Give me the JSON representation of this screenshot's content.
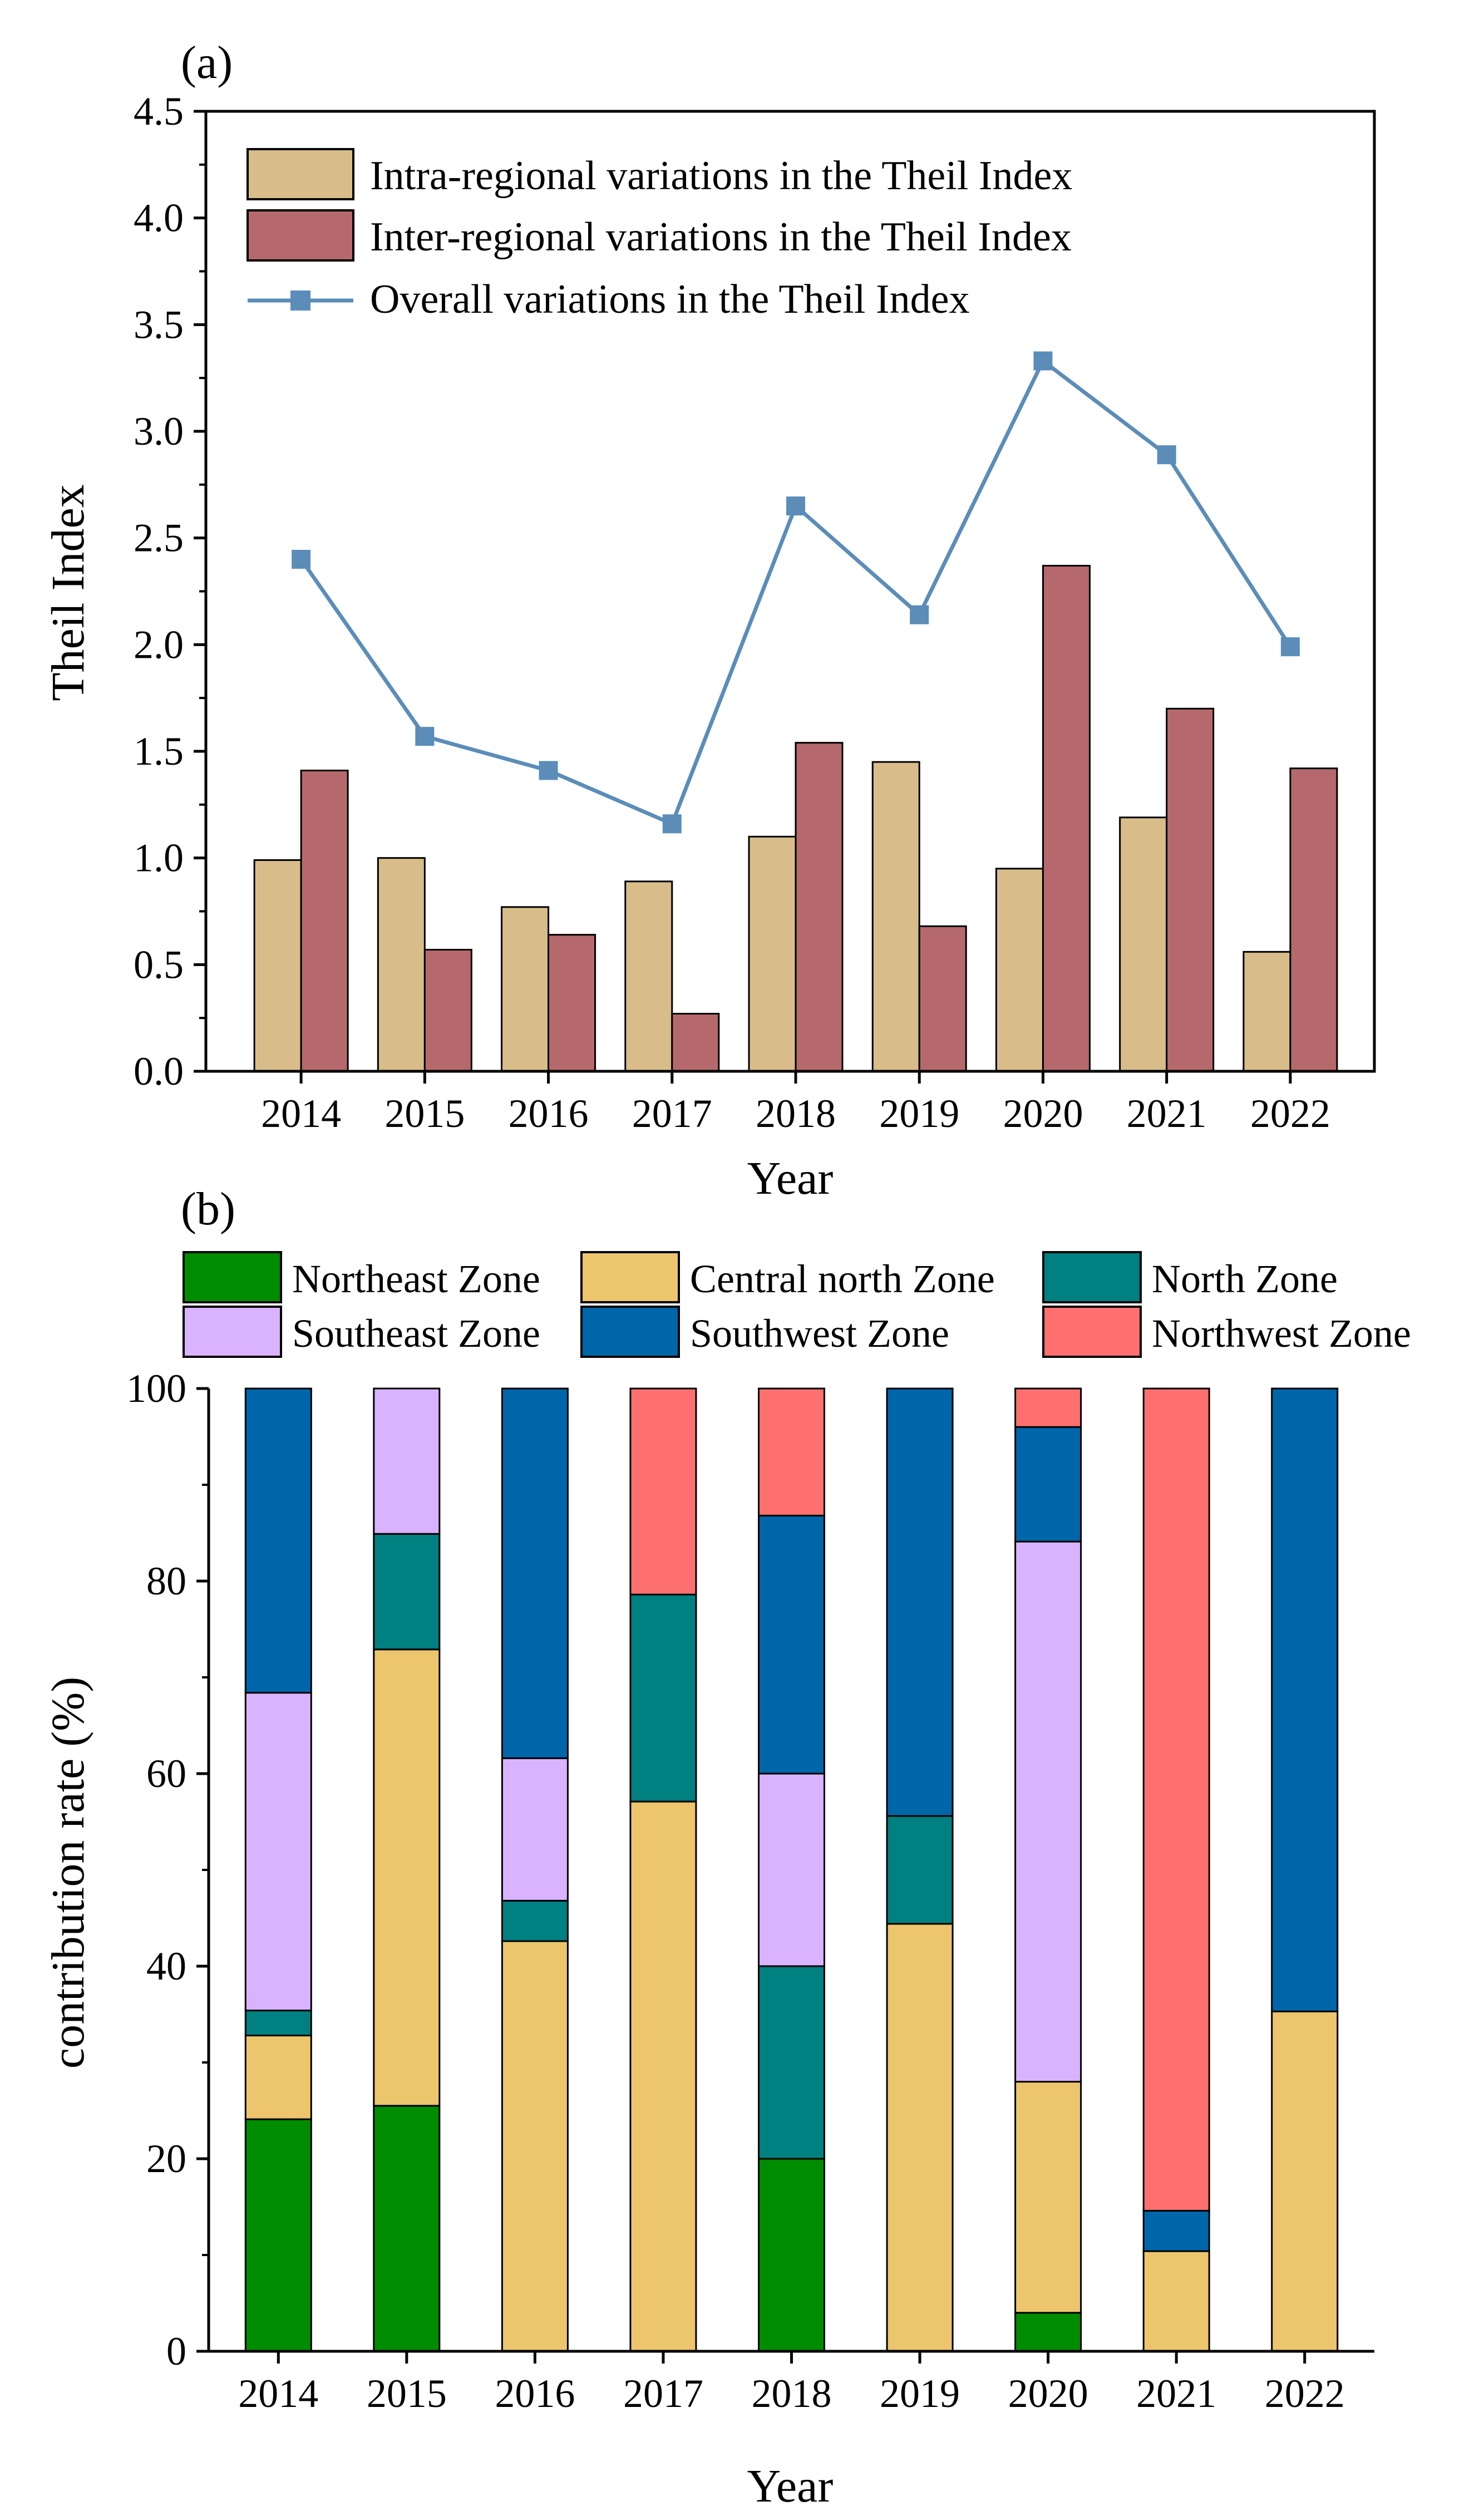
{
  "chart_data": [
    {
      "panel_label": "(a)",
      "type": "bar",
      "title": "",
      "xlabel": "Year",
      "ylabel": "Theil Index",
      "categories": [
        "2014",
        "2015",
        "2016",
        "2017",
        "2018",
        "2019",
        "2020",
        "2021",
        "2022"
      ],
      "ylim": [
        0,
        4.5
      ],
      "yticks": [
        "0.0",
        "0.5",
        "1.0",
        "1.5",
        "2.0",
        "2.5",
        "3.0",
        "3.5",
        "4.0",
        "4.5"
      ],
      "legend_position": "top-left",
      "series": [
        {
          "name": "Intra-regional variations in the Theil Index",
          "kind": "bar",
          "color": "#d8bd8a",
          "values": [
            0.99,
            1.0,
            0.77,
            0.89,
            1.1,
            1.45,
            0.95,
            1.19,
            0.56
          ]
        },
        {
          "name": "Inter-regional variations in the Theil Index",
          "kind": "bar",
          "color": "#b5696c",
          "values": [
            1.41,
            0.57,
            0.64,
            0.27,
            1.54,
            0.68,
            2.37,
            1.7,
            1.42
          ]
        },
        {
          "name": "Overall variations in the Theil Index",
          "kind": "line",
          "color": "#5b8db8",
          "values": [
            2.4,
            1.57,
            1.41,
            1.16,
            2.65,
            2.14,
            3.33,
            2.89,
            1.99
          ]
        }
      ]
    },
    {
      "panel_label": "(b)",
      "type": "bar",
      "stacked": true,
      "title": "",
      "xlabel": "Year",
      "ylabel": "contribution rate (%)",
      "categories": [
        "2014",
        "2015",
        "2016",
        "2017",
        "2018",
        "2019",
        "2020",
        "2021",
        "2022"
      ],
      "ylim": [
        0,
        100
      ],
      "yticks": [
        "0",
        "20",
        "40",
        "60",
        "80",
        "100"
      ],
      "legend_position": "top",
      "series": [
        {
          "name": "Northeast Zone",
          "color": "#008c00",
          "values": [
            24.1,
            25.5,
            0,
            0,
            20.0,
            0,
            4.0,
            0,
            0
          ]
        },
        {
          "name": "Central north Zone",
          "color": "#ecc56d",
          "values": [
            8.7,
            47.4,
            42.6,
            57.1,
            0,
            44.4,
            24.0,
            10.4,
            35.3
          ]
        },
        {
          "name": "North Zone",
          "color": "#008080",
          "values": [
            2.6,
            12.0,
            4.2,
            21.5,
            20.0,
            11.2,
            0,
            0,
            0
          ]
        },
        {
          "name": "Southeast Zone",
          "color": "#d9b3ff",
          "values": [
            33.0,
            15.1,
            14.8,
            0,
            20.0,
            0,
            56.1,
            0,
            0
          ]
        },
        {
          "name": "Southwest Zone",
          "color": "#0066aa",
          "values": [
            31.6,
            0,
            38.4,
            0,
            26.8,
            44.4,
            11.9,
            4.2,
            64.7
          ]
        },
        {
          "name": "Northwest Zone",
          "color": "#fe7070",
          "values": [
            0,
            0,
            0,
            21.4,
            13.2,
            0,
            4.0,
            85.4,
            0
          ]
        }
      ]
    }
  ]
}
